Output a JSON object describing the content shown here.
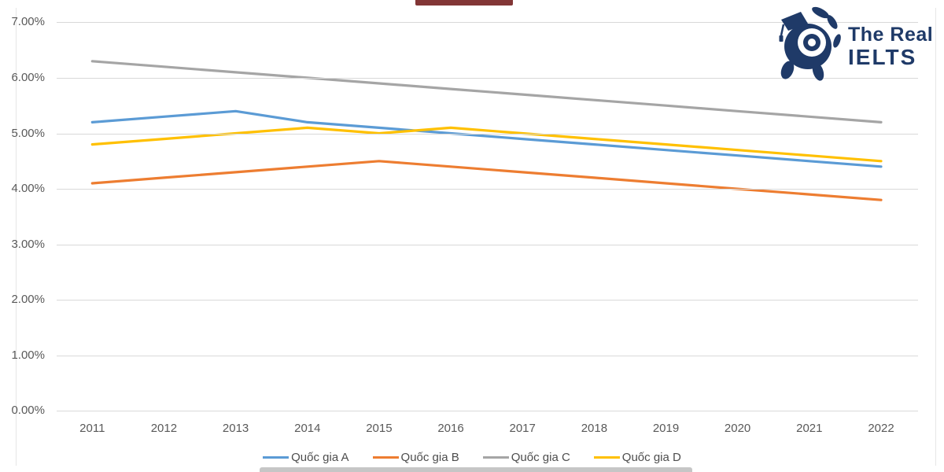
{
  "branding": {
    "name_line1": "The Real",
    "name_line2": "IELTS",
    "color": "#1f3a68"
  },
  "ui": {
    "cropped_title_bar_color": "#823636",
    "bottom_cropped_bar_color": "#c6c6c6",
    "grid_color": "#d9d9d9",
    "axis_text_color": "#595959"
  },
  "chart_data": {
    "type": "line",
    "x": [
      "2011",
      "2012",
      "2013",
      "2014",
      "2015",
      "2016",
      "2017",
      "2018",
      "2019",
      "2020",
      "2021",
      "2022"
    ],
    "series": [
      {
        "name": "Quốc gia A",
        "color": "#5B9BD5",
        "values": [
          5.2,
          5.3,
          5.4,
          5.2,
          5.1,
          5.0,
          4.9,
          4.8,
          4.7,
          4.6,
          4.5,
          4.4
        ]
      },
      {
        "name": "Quốc gia B",
        "color": "#ED7D31",
        "values": [
          4.1,
          4.2,
          4.3,
          4.4,
          4.5,
          4.4,
          4.3,
          4.2,
          4.1,
          4.0,
          3.9,
          3.8
        ]
      },
      {
        "name": "Quốc gia C",
        "color": "#A5A5A5",
        "values": [
          6.3,
          6.2,
          6.1,
          6.0,
          5.9,
          5.8,
          5.7,
          5.6,
          5.5,
          5.4,
          5.3,
          5.2
        ]
      },
      {
        "name": "Quốc gia D",
        "color": "#FFC000",
        "values": [
          4.8,
          4.9,
          5.0,
          5.1,
          5.0,
          5.1,
          5.0,
          4.9,
          4.8,
          4.7,
          4.6,
          4.5
        ]
      }
    ],
    "y_ticks": [
      "0.00%",
      "1.00%",
      "2.00%",
      "3.00%",
      "4.00%",
      "5.00%",
      "6.00%",
      "7.00%"
    ],
    "ylim": [
      0,
      7
    ],
    "unit": "%",
    "grid": true,
    "legend_position": "bottom",
    "title": ""
  }
}
